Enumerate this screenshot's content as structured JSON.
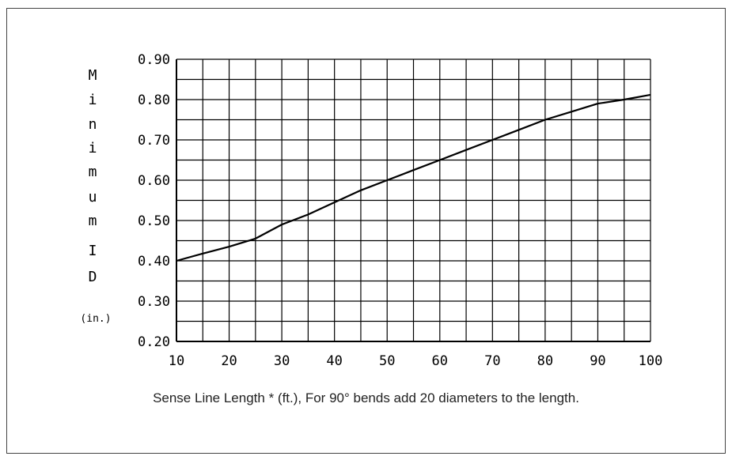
{
  "chart_data": {
    "type": "line",
    "xlabel": "Sense Line Length * (ft.), For 90° bends add 20 diameters to the length.",
    "ylabel_chars": [
      "M",
      "i",
      "n",
      "i",
      "m",
      "u",
      "m",
      "I",
      "D",
      "(in.)"
    ],
    "x_ticks": [
      10,
      20,
      30,
      40,
      50,
      60,
      70,
      80,
      90,
      100
    ],
    "y_ticks": [
      "0.20",
      "0.30",
      "0.40",
      "0.50",
      "0.60",
      "0.70",
      "0.80",
      "0.90"
    ],
    "xlim": [
      10,
      100
    ],
    "ylim": [
      0.2,
      0.9
    ],
    "grid": true,
    "series": [
      {
        "x": [
          10,
          15,
          20,
          25,
          30,
          35,
          40,
          45,
          50,
          55,
          60,
          65,
          70,
          75,
          80,
          85,
          90,
          95,
          100
        ],
        "y": [
          0.4,
          0.418,
          0.435,
          0.455,
          0.49,
          0.515,
          0.545,
          0.575,
          0.6,
          0.625,
          0.65,
          0.675,
          0.7,
          0.725,
          0.75,
          0.77,
          0.79,
          0.8,
          0.812
        ]
      }
    ]
  },
  "colors": {
    "line": "#000000",
    "grid": "#000000",
    "frame": "#444444"
  }
}
